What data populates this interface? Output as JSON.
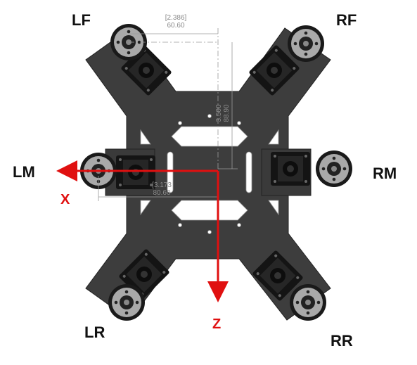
{
  "legs": {
    "lf": "LF",
    "rf": "RF",
    "lm": "LM",
    "rm": "RM",
    "lr": "LR",
    "rr": "RR"
  },
  "axes": {
    "x": "X",
    "z": "Z"
  },
  "dimensions": {
    "front_offset_in": "[2.386]",
    "front_offset_mm": "60.60",
    "front_vertical_in": "3.500",
    "front_vertical_mm": "88.90",
    "middle_offset_in": "[3.173",
    "middle_offset_mm": "80.60"
  },
  "colors": {
    "plate": "#3d3d3d",
    "axis": "#e01010",
    "servo": "#141414",
    "horn": "#a8a8a8"
  }
}
